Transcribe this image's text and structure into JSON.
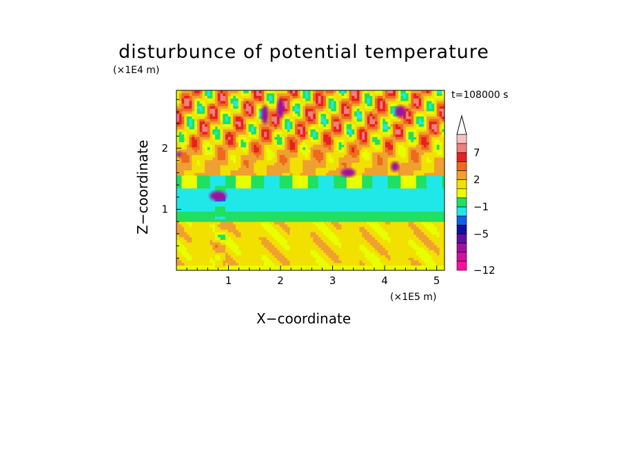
{
  "chart_data": {
    "type": "heatmap",
    "title": "disturbunce of potential temperature",
    "xlabel": "X−coordinate",
    "ylabel": "Z−coordinate",
    "x_units": "(×1E5 m)",
    "y_units": "(×1E4 m)",
    "time_label": "t=108000 s",
    "x_ticks": [
      "1",
      "2",
      "3",
      "4",
      "5"
    ],
    "y_ticks": [
      "1",
      "2"
    ],
    "xlim": [
      0,
      5.15
    ],
    "ylim": [
      0,
      2.95
    ],
    "colorbar": {
      "labels": [
        "7",
        "2",
        "−1",
        "−5",
        "−12"
      ],
      "label_values": [
        7,
        2,
        -1,
        -5,
        -12
      ],
      "extend": "max",
      "colors_top_to_bottom": [
        "#f9c0c0",
        "#f08080",
        "#e82020",
        "#ee6a1c",
        "#f0a030",
        "#f2e000",
        "#e8ff00",
        "#20e060",
        "#20e8e8",
        "#1060e8",
        "#1010a0",
        "#6010a0",
        "#a010a0",
        "#d010a0",
        "#ff10a0"
      ]
    },
    "bands": [
      {
        "name": "surface-yellow",
        "z_range": [
          0,
          0.08
        ],
        "approx_value": 1
      },
      {
        "name": "lower-yellow-orange",
        "z_range": [
          0.08,
          0.8
        ],
        "approx_value": 2
      },
      {
        "name": "green-transition",
        "z_range": [
          0.8,
          0.95
        ],
        "approx_value": 0
      },
      {
        "name": "cyan-band",
        "z_range": [
          0.95,
          1.35
        ],
        "approx_value": -1
      },
      {
        "name": "green-upper",
        "z_range": [
          1.35,
          1.55
        ],
        "approx_value": 0
      },
      {
        "name": "upper-yellow-orange",
        "z_range": [
          1.55,
          2.95
        ],
        "approx_value": 3
      }
    ]
  }
}
